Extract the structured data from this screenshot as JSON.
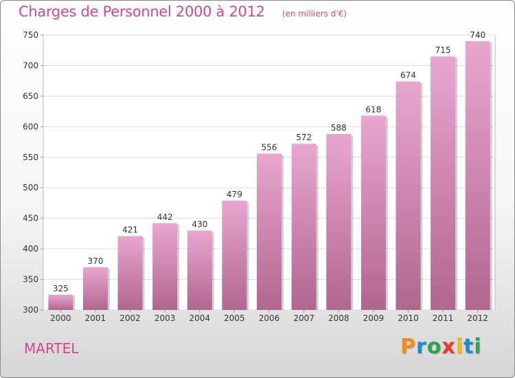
{
  "chart_data": {
    "type": "bar",
    "title": "Charges de Personnel 2000 à 2012",
    "unit_note": "(en milliers d'€)",
    "categories": [
      "2000",
      "2001",
      "2002",
      "2003",
      "2004",
      "2005",
      "2006",
      "2007",
      "2008",
      "2009",
      "2010",
      "2011",
      "2012"
    ],
    "values": [
      325,
      370,
      421,
      442,
      430,
      479,
      556,
      572,
      588,
      618,
      674,
      715,
      740
    ],
    "ylim": [
      300,
      750
    ],
    "yticks": [
      300,
      350,
      400,
      450,
      500,
      550,
      600,
      650,
      700,
      750
    ],
    "xlabel": "",
    "ylabel": "",
    "grid": true
  },
  "footer": {
    "city": "MARTEL",
    "logo": {
      "letters": [
        "P",
        "r",
        "o",
        "x",
        "i",
        "t",
        "i"
      ],
      "colors": [
        "#f28c1a",
        "#1e88c8",
        "#2aa64a",
        "#e53935",
        "#f2b90f",
        "#1e88c8",
        "#2aa64a"
      ]
    }
  },
  "colors": {
    "accent": "#d9458a",
    "bar_top": "#e8a6cf",
    "bar_bottom": "#b0678f"
  }
}
